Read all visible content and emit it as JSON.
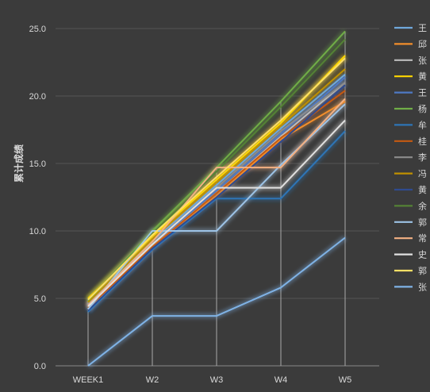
{
  "chart_data": {
    "type": "line",
    "ylabel": "累计成绩",
    "xlabel": "",
    "categories": [
      "WEEK1",
      "W2",
      "W3",
      "W4",
      "W5"
    ],
    "ylim": [
      0,
      25
    ],
    "yticks": [
      0,
      5,
      10,
      15,
      20,
      25
    ],
    "ytick_labels": [
      "0.0",
      "5.0",
      "10.0",
      "15.0",
      "20.0",
      "25.0"
    ],
    "grid": true,
    "drop_lines": true,
    "legend_position": "right",
    "series": [
      {
        "name": "王",
        "color": "#6fa8dc",
        "values": [
          4.6,
          9.2,
          13.4,
          17.6,
          21.6
        ]
      },
      {
        "name": "邱",
        "color": "#f28e2b",
        "values": [
          4.4,
          8.9,
          12.6,
          16.8,
          19.6
        ]
      },
      {
        "name": "张",
        "color": "#bdbdbd",
        "values": [
          4.2,
          8.8,
          12.8,
          17.0,
          21.0
        ]
      },
      {
        "name": "黄",
        "color": "#ffd700",
        "values": [
          5.0,
          9.6,
          13.8,
          18.0,
          23.0
        ]
      },
      {
        "name": "王",
        "color": "#4e79c4",
        "values": [
          4.5,
          9.0,
          13.0,
          17.2,
          21.4
        ]
      },
      {
        "name": "杨",
        "color": "#70ad47",
        "values": [
          4.8,
          10.0,
          14.7,
          19.6,
          24.8
        ]
      },
      {
        "name": "牟",
        "color": "#2e75b6",
        "values": [
          4.0,
          8.6,
          12.4,
          12.4,
          17.4
        ]
      },
      {
        "name": "桂",
        "color": "#c55a11",
        "values": [
          4.3,
          8.8,
          12.8,
          16.9,
          20.4
        ]
      },
      {
        "name": "李",
        "color": "#8c8c8c",
        "values": [
          4.5,
          9.1,
          13.2,
          17.4,
          21.0
        ]
      },
      {
        "name": "冯",
        "color": "#bf9000",
        "values": [
          4.7,
          9.4,
          13.6,
          17.8,
          22.0
        ]
      },
      {
        "name": "黄",
        "color": "#2f4b8f",
        "values": [
          4.1,
          8.7,
          12.5,
          16.6,
          20.8
        ]
      },
      {
        "name": "余",
        "color": "#548235",
        "values": [
          4.9,
          9.8,
          14.4,
          19.2,
          24.2
        ]
      },
      {
        "name": "郭",
        "color": "#9dc3e6",
        "values": [
          4.2,
          10.0,
          10.0,
          14.9,
          19.4
        ]
      },
      {
        "name": "常",
        "color": "#f4b183",
        "values": [
          4.5,
          9.2,
          14.7,
          14.7,
          19.8
        ]
      },
      {
        "name": "史",
        "color": "#e0e0e0",
        "values": [
          4.4,
          9.0,
          13.2,
          13.2,
          18.2
        ]
      },
      {
        "name": "郭",
        "color": "#ffe066",
        "values": [
          4.9,
          9.7,
          14.0,
          18.2,
          22.8
        ]
      },
      {
        "name": "张",
        "color": "#7fb2e5",
        "values": [
          0.0,
          3.7,
          3.7,
          5.8,
          9.5
        ]
      }
    ]
  }
}
